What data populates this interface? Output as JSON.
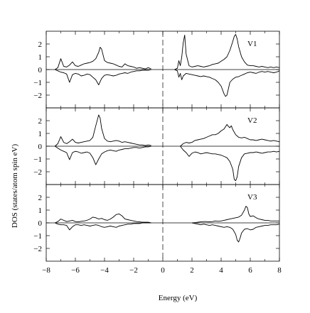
{
  "chart_data": {
    "type": "line",
    "xlabel": "Energy (eV)",
    "ylabel": "DOS (states/atom spin eV)",
    "xlim": [
      -8,
      8
    ],
    "ylim": [
      -3,
      3
    ],
    "x_ticks": [
      -8,
      -6,
      -4,
      -2,
      0,
      2,
      4,
      6,
      8
    ],
    "y_ticks": [
      2,
      1,
      0,
      -1,
      -2
    ],
    "fermi_level": 0,
    "fermi_line_style": "dashed",
    "line_color": "#000000",
    "panels": [
      {
        "label": "V1",
        "series": [
          {
            "spin": "up",
            "x": [
              -7.4,
              -7.2,
              -7.0,
              -6.8,
              -6.6,
              -6.4,
              -6.2,
              -6.0,
              -5.8,
              -5.6,
              -5.4,
              -5.2,
              -5.0,
              -4.8,
              -4.6,
              -4.4,
              -4.3,
              -4.2,
              -4.0,
              -3.8,
              -3.6,
              -3.4,
              -3.2,
              -3.0,
              -2.8,
              -2.6,
              -2.4,
              -2.2,
              -2.0,
              -1.8,
              -1.6,
              -1.4,
              -1.2,
              -1.0,
              -0.8
            ],
            "y": [
              0.0,
              0.15,
              0.85,
              0.25,
              0.2,
              0.35,
              0.6,
              0.3,
              0.25,
              0.35,
              0.45,
              0.5,
              0.55,
              0.65,
              0.85,
              1.35,
              1.75,
              1.6,
              0.7,
              0.55,
              0.5,
              0.45,
              0.35,
              0.25,
              0.2,
              0.45,
              0.3,
              0.25,
              0.2,
              0.1,
              0.15,
              0.1,
              0.05,
              0.15,
              0.05
            ]
          },
          {
            "spin": "down",
            "x": [
              -7.4,
              -7.2,
              -7.0,
              -6.8,
              -6.6,
              -6.4,
              -6.2,
              -6.0,
              -5.8,
              -5.6,
              -5.4,
              -5.2,
              -5.0,
              -4.8,
              -4.6,
              -4.4,
              -4.2,
              -4.0,
              -3.8,
              -3.6,
              -3.4,
              -3.2,
              -3.0,
              -2.8,
              -2.6,
              -2.4,
              -2.2,
              -2.0,
              -1.8,
              -1.6,
              -1.4,
              -1.2,
              -1.0,
              -0.8
            ],
            "y": [
              0.0,
              -0.1,
              -0.2,
              -0.25,
              -0.35,
              -1.0,
              -0.4,
              -0.3,
              -0.35,
              -0.5,
              -0.45,
              -0.35,
              -0.4,
              -0.6,
              -0.8,
              -1.2,
              -0.7,
              -0.45,
              -0.4,
              -0.45,
              -0.5,
              -0.45,
              -0.35,
              -0.3,
              -0.25,
              -0.3,
              -0.2,
              -0.15,
              -0.1,
              -0.1,
              -0.05,
              -0.05,
              -0.05,
              0.0
            ]
          },
          {
            "spin": "up",
            "x": [
              0.8,
              1.0,
              1.1,
              1.2,
              1.3,
              1.4,
              1.5,
              1.6,
              1.8,
              2.0,
              2.2,
              2.4,
              2.6,
              2.8,
              3.0,
              3.2,
              3.4,
              3.6,
              3.8,
              4.0,
              4.2,
              4.4,
              4.6,
              4.8,
              4.9,
              5.0,
              5.1,
              5.2,
              5.4,
              5.6,
              5.8,
              6.0,
              6.2,
              6.4,
              6.6,
              6.8,
              7.0,
              7.2,
              7.4,
              7.6,
              7.8,
              8.0
            ],
            "y": [
              0.0,
              0.1,
              0.7,
              0.3,
              1.0,
              2.1,
              2.7,
              1.2,
              0.3,
              0.2,
              0.25,
              0.3,
              0.25,
              0.2,
              0.25,
              0.3,
              0.4,
              0.45,
              0.5,
              0.65,
              0.8,
              1.0,
              1.5,
              2.2,
              2.6,
              2.75,
              2.4,
              1.8,
              1.0,
              0.6,
              0.35,
              0.3,
              0.3,
              0.25,
              0.2,
              0.25,
              0.2,
              0.15,
              0.2,
              0.15,
              0.2,
              0.15
            ]
          },
          {
            "spin": "down",
            "x": [
              0.8,
              1.0,
              1.1,
              1.2,
              1.3,
              1.4,
              1.6,
              1.8,
              2.0,
              2.2,
              2.4,
              2.6,
              2.8,
              3.0,
              3.2,
              3.4,
              3.6,
              3.8,
              4.0,
              4.2,
              4.3,
              4.4,
              4.5,
              4.6,
              4.8,
              5.0,
              5.2,
              5.4,
              5.6,
              5.8,
              6.0,
              6.2,
              6.4,
              6.6,
              6.8,
              7.0,
              7.2,
              7.4,
              7.6,
              7.8,
              8.0
            ],
            "y": [
              0.0,
              -0.1,
              -0.6,
              -0.3,
              -0.8,
              -0.5,
              -0.3,
              -0.35,
              -0.4,
              -0.45,
              -0.5,
              -0.55,
              -0.5,
              -0.55,
              -0.6,
              -0.7,
              -0.8,
              -1.0,
              -1.3,
              -1.9,
              -2.1,
              -2.0,
              -1.5,
              -1.0,
              -0.75,
              -0.6,
              -0.55,
              -0.45,
              -0.35,
              -0.25,
              -0.2,
              -0.25,
              -0.3,
              -0.2,
              -0.15,
              -0.2,
              -0.15,
              -0.2,
              -0.25,
              -0.2,
              -0.1
            ]
          }
        ]
      },
      {
        "label": "V2",
        "series": [
          {
            "spin": "up",
            "x": [
              -7.4,
              -7.2,
              -7.0,
              -6.8,
              -6.6,
              -6.4,
              -6.2,
              -6.0,
              -5.8,
              -5.6,
              -5.4,
              -5.2,
              -5.0,
              -4.8,
              -4.6,
              -4.4,
              -4.3,
              -4.2,
              -4.0,
              -3.8,
              -3.6,
              -3.4,
              -3.2,
              -3.0,
              -2.8,
              -2.6,
              -2.4,
              -2.2,
              -2.0,
              -1.8,
              -1.6,
              -1.4,
              -1.2,
              -1.0,
              -0.8
            ],
            "y": [
              0.0,
              0.2,
              0.75,
              0.3,
              0.2,
              0.35,
              0.55,
              0.3,
              0.25,
              0.3,
              0.35,
              0.4,
              0.45,
              0.7,
              1.6,
              2.45,
              2.2,
              1.4,
              0.6,
              0.4,
              0.35,
              0.4,
              0.45,
              0.4,
              0.3,
              0.35,
              0.3,
              0.25,
              0.2,
              0.15,
              0.1,
              0.1,
              0.05,
              0.1,
              0.05
            ]
          },
          {
            "spin": "down",
            "x": [
              -7.4,
              -7.2,
              -7.0,
              -6.8,
              -6.6,
              -6.4,
              -6.2,
              -6.0,
              -5.8,
              -5.6,
              -5.4,
              -5.2,
              -5.0,
              -4.8,
              -4.6,
              -4.4,
              -4.2,
              -4.0,
              -3.8,
              -3.6,
              -3.4,
              -3.2,
              -3.0,
              -2.8,
              -2.6,
              -2.4,
              -2.2,
              -2.0,
              -1.8,
              -1.6,
              -1.4,
              -1.2,
              -1.0,
              -0.8
            ],
            "y": [
              0.0,
              -0.15,
              -0.3,
              -0.4,
              -0.5,
              -1.05,
              -0.5,
              -0.4,
              -0.45,
              -0.55,
              -0.5,
              -0.45,
              -0.55,
              -0.9,
              -1.45,
              -1.0,
              -0.6,
              -0.45,
              -0.35,
              -0.3,
              -0.35,
              -0.4,
              -0.3,
              -0.25,
              -0.2,
              -0.2,
              -0.15,
              -0.1,
              -0.1,
              -0.15,
              -0.1,
              -0.05,
              -0.05,
              0.0
            ]
          },
          {
            "spin": "up",
            "x": [
              1.2,
              1.4,
              1.6,
              1.8,
              2.0,
              2.2,
              2.4,
              2.6,
              2.8,
              3.0,
              3.2,
              3.4,
              3.6,
              3.8,
              4.0,
              4.2,
              4.4,
              4.5,
              4.6,
              4.7,
              4.8,
              5.0,
              5.2,
              5.4,
              5.6,
              5.8,
              6.0,
              6.2,
              6.4,
              6.6,
              6.8,
              7.0,
              7.2,
              7.4,
              7.6,
              7.8,
              8.0
            ],
            "y": [
              0.0,
              0.2,
              0.3,
              0.25,
              0.3,
              0.45,
              0.5,
              0.55,
              0.6,
              0.7,
              0.8,
              0.9,
              0.9,
              1.0,
              1.2,
              1.35,
              1.7,
              1.55,
              1.45,
              1.6,
              1.3,
              0.9,
              0.7,
              0.65,
              0.7,
              0.6,
              0.5,
              0.5,
              0.45,
              0.5,
              0.55,
              0.5,
              0.45,
              0.4,
              0.45,
              0.4,
              0.35
            ]
          },
          {
            "spin": "down",
            "x": [
              1.2,
              1.4,
              1.6,
              1.8,
              2.0,
              2.2,
              2.4,
              2.6,
              2.8,
              3.0,
              3.2,
              3.4,
              3.6,
              3.8,
              4.0,
              4.2,
              4.4,
              4.6,
              4.8,
              4.9,
              5.0,
              5.1,
              5.2,
              5.4,
              5.6,
              5.8,
              6.0,
              6.2,
              6.4,
              6.6,
              6.8,
              7.0,
              7.2,
              7.4,
              7.6,
              7.8,
              8.0
            ],
            "y": [
              0.0,
              -0.3,
              -0.5,
              -0.8,
              -0.55,
              -0.45,
              -0.5,
              -0.6,
              -0.55,
              -0.5,
              -0.55,
              -0.6,
              -0.6,
              -0.65,
              -0.7,
              -0.8,
              -0.9,
              -1.2,
              -1.8,
              -2.6,
              -2.7,
              -2.4,
              -1.6,
              -0.9,
              -0.6,
              -0.55,
              -0.5,
              -0.5,
              -0.45,
              -0.5,
              -0.55,
              -0.5,
              -0.45,
              -0.45,
              -0.4,
              -0.45,
              -0.4
            ]
          }
        ]
      },
      {
        "label": "V3",
        "series": [
          {
            "spin": "up",
            "x": [
              -7.4,
              -7.2,
              -7.0,
              -6.8,
              -6.6,
              -6.4,
              -6.2,
              -6.0,
              -5.8,
              -5.6,
              -5.4,
              -5.2,
              -5.0,
              -4.8,
              -4.6,
              -4.4,
              -4.2,
              -4.0,
              -3.8,
              -3.6,
              -3.4,
              -3.2,
              -3.0,
              -2.8,
              -2.6,
              -2.4,
              -2.2,
              -2.0,
              -1.8,
              -1.6,
              -1.4,
              -1.2,
              -1.0,
              -0.8
            ],
            "y": [
              0.0,
              0.1,
              0.3,
              0.2,
              0.1,
              0.15,
              0.2,
              0.1,
              0.08,
              0.12,
              0.15,
              0.2,
              0.3,
              0.45,
              0.4,
              0.3,
              0.35,
              0.25,
              0.2,
              0.3,
              0.45,
              0.65,
              0.7,
              0.55,
              0.3,
              0.25,
              0.2,
              0.15,
              0.1,
              0.08,
              0.05,
              0.05,
              0.05,
              0.0
            ]
          },
          {
            "spin": "down",
            "x": [
              -7.4,
              -7.2,
              -7.0,
              -6.8,
              -6.6,
              -6.4,
              -6.2,
              -6.0,
              -5.8,
              -5.6,
              -5.4,
              -5.2,
              -5.0,
              -4.8,
              -4.6,
              -4.4,
              -4.2,
              -4.0,
              -3.8,
              -3.6,
              -3.4,
              -3.2,
              -3.0,
              -2.8,
              -2.6,
              -2.4,
              -2.2,
              -2.0,
              -1.8,
              -1.6,
              -1.4,
              -1.2,
              -1.0,
              -0.8
            ],
            "y": [
              0.0,
              -0.1,
              -0.15,
              -0.15,
              -0.2,
              -0.55,
              -0.3,
              -0.15,
              -0.15,
              -0.2,
              -0.15,
              -0.2,
              -0.25,
              -0.2,
              -0.15,
              -0.2,
              -0.3,
              -0.35,
              -0.3,
              -0.25,
              -0.3,
              -0.35,
              -0.25,
              -0.2,
              -0.15,
              -0.1,
              -0.1,
              -0.05,
              -0.05,
              -0.05,
              0.0,
              0.0,
              0.0,
              0.0
            ]
          },
          {
            "spin": "up",
            "x": [
              2.0,
              2.2,
              2.4,
              2.6,
              2.8,
              3.0,
              3.2,
              3.4,
              3.6,
              3.8,
              4.0,
              4.2,
              4.4,
              4.6,
              4.8,
              5.0,
              5.2,
              5.4,
              5.6,
              5.7,
              5.8,
              5.9,
              6.0,
              6.2,
              6.4,
              6.6,
              6.8,
              7.0,
              7.2,
              7.4,
              7.6,
              7.8,
              8.0
            ],
            "y": [
              0.0,
              0.02,
              0.05,
              0.08,
              0.1,
              0.1,
              0.08,
              0.1,
              0.15,
              0.12,
              0.15,
              0.2,
              0.25,
              0.3,
              0.35,
              0.4,
              0.45,
              0.6,
              1.0,
              1.3,
              1.2,
              0.7,
              0.5,
              0.55,
              0.4,
              0.3,
              0.25,
              0.2,
              0.2,
              0.15,
              0.15,
              0.15,
              0.15
            ]
          },
          {
            "spin": "down",
            "x": [
              2.0,
              2.2,
              2.4,
              2.6,
              2.8,
              3.0,
              3.2,
              3.4,
              3.6,
              3.8,
              4.0,
              4.2,
              4.4,
              4.6,
              4.8,
              5.0,
              5.1,
              5.2,
              5.3,
              5.4,
              5.6,
              5.8,
              6.0,
              6.2,
              6.4,
              6.6,
              6.8,
              7.0,
              7.2,
              7.4,
              7.6,
              7.8,
              8.0
            ],
            "y": [
              0.0,
              -0.05,
              -0.1,
              -0.15,
              -0.1,
              -0.15,
              -0.2,
              -0.15,
              -0.2,
              -0.25,
              -0.3,
              -0.35,
              -0.3,
              -0.35,
              -0.5,
              -0.9,
              -1.35,
              -1.5,
              -1.2,
              -0.8,
              -0.5,
              -0.45,
              -0.55,
              -0.5,
              -0.35,
              -0.3,
              -0.25,
              -0.2,
              -0.2,
              -0.15,
              -0.15,
              -0.15,
              -0.1
            ]
          }
        ]
      }
    ]
  }
}
